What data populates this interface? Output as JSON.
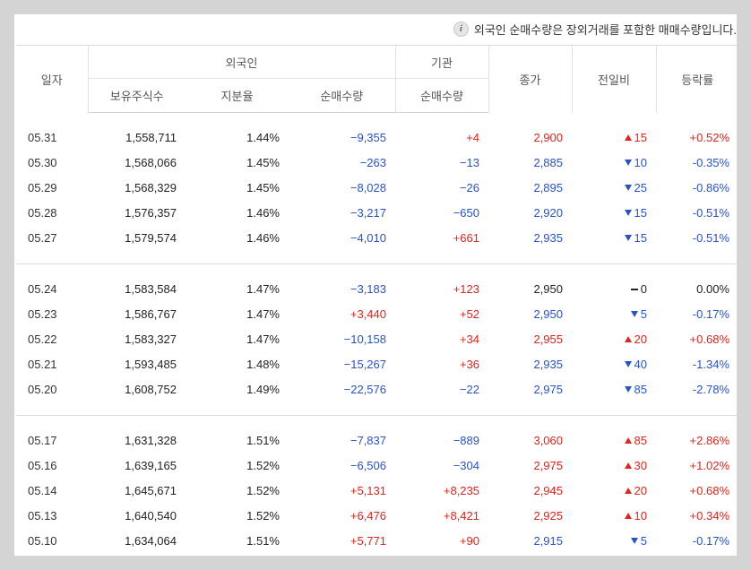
{
  "notice": "외국인 순매수량은 장외거래를 포함한 매매수량입니다.",
  "colors": {
    "up": "#e0241b",
    "down": "#2753c7",
    "flat": "#222222"
  },
  "headers": {
    "date": "일자",
    "foreign": "외국인",
    "institution": "기관",
    "holdings": "보유주식수",
    "share": "지분율",
    "foreign_net": "순매수량",
    "inst_net": "순매수량",
    "close": "종가",
    "change": "전일비",
    "rate": "등락률"
  },
  "groups": [
    [
      {
        "date": "05.31",
        "holdings": "1,558,711",
        "share": "1.44%",
        "foreign_net": "−9,355",
        "foreign_dir": "down",
        "inst_net": "+4",
        "inst_dir": "up",
        "close": "2,900",
        "close_dir": "up",
        "change": "15",
        "change_dir": "up",
        "rate": "+0.52%",
        "rate_dir": "up"
      },
      {
        "date": "05.30",
        "holdings": "1,568,066",
        "share": "1.45%",
        "foreign_net": "−263",
        "foreign_dir": "down",
        "inst_net": "−13",
        "inst_dir": "down",
        "close": "2,885",
        "close_dir": "down",
        "change": "10",
        "change_dir": "down",
        "rate": "-0.35%",
        "rate_dir": "down"
      },
      {
        "date": "05.29",
        "holdings": "1,568,329",
        "share": "1.45%",
        "foreign_net": "−8,028",
        "foreign_dir": "down",
        "inst_net": "−26",
        "inst_dir": "down",
        "close": "2,895",
        "close_dir": "down",
        "change": "25",
        "change_dir": "down",
        "rate": "-0.86%",
        "rate_dir": "down"
      },
      {
        "date": "05.28",
        "holdings": "1,576,357",
        "share": "1.46%",
        "foreign_net": "−3,217",
        "foreign_dir": "down",
        "inst_net": "−650",
        "inst_dir": "down",
        "close": "2,920",
        "close_dir": "down",
        "change": "15",
        "change_dir": "down",
        "rate": "-0.51%",
        "rate_dir": "down"
      },
      {
        "date": "05.27",
        "holdings": "1,579,574",
        "share": "1.46%",
        "foreign_net": "−4,010",
        "foreign_dir": "down",
        "inst_net": "+661",
        "inst_dir": "up",
        "close": "2,935",
        "close_dir": "down",
        "change": "15",
        "change_dir": "down",
        "rate": "-0.51%",
        "rate_dir": "down"
      }
    ],
    [
      {
        "date": "05.24",
        "holdings": "1,583,584",
        "share": "1.47%",
        "foreign_net": "−3,183",
        "foreign_dir": "down",
        "inst_net": "+123",
        "inst_dir": "up",
        "close": "2,950",
        "close_dir": "flat",
        "change": "0",
        "change_dir": "flat",
        "rate": "0.00%",
        "rate_dir": "flat"
      },
      {
        "date": "05.23",
        "holdings": "1,586,767",
        "share": "1.47%",
        "foreign_net": "+3,440",
        "foreign_dir": "up",
        "inst_net": "+52",
        "inst_dir": "up",
        "close": "2,950",
        "close_dir": "down",
        "change": "5",
        "change_dir": "down",
        "rate": "-0.17%",
        "rate_dir": "down"
      },
      {
        "date": "05.22",
        "holdings": "1,583,327",
        "share": "1.47%",
        "foreign_net": "−10,158",
        "foreign_dir": "down",
        "inst_net": "+34",
        "inst_dir": "up",
        "close": "2,955",
        "close_dir": "up",
        "change": "20",
        "change_dir": "up",
        "rate": "+0.68%",
        "rate_dir": "up"
      },
      {
        "date": "05.21",
        "holdings": "1,593,485",
        "share": "1.48%",
        "foreign_net": "−15,267",
        "foreign_dir": "down",
        "inst_net": "+36",
        "inst_dir": "up",
        "close": "2,935",
        "close_dir": "down",
        "change": "40",
        "change_dir": "down",
        "rate": "-1.34%",
        "rate_dir": "down"
      },
      {
        "date": "05.20",
        "holdings": "1,608,752",
        "share": "1.49%",
        "foreign_net": "−22,576",
        "foreign_dir": "down",
        "inst_net": "−22",
        "inst_dir": "down",
        "close": "2,975",
        "close_dir": "down",
        "change": "85",
        "change_dir": "down",
        "rate": "-2.78%",
        "rate_dir": "down"
      }
    ],
    [
      {
        "date": "05.17",
        "holdings": "1,631,328",
        "share": "1.51%",
        "foreign_net": "−7,837",
        "foreign_dir": "down",
        "inst_net": "−889",
        "inst_dir": "down",
        "close": "3,060",
        "close_dir": "up",
        "change": "85",
        "change_dir": "up",
        "rate": "+2.86%",
        "rate_dir": "up"
      },
      {
        "date": "05.16",
        "holdings": "1,639,165",
        "share": "1.52%",
        "foreign_net": "−6,506",
        "foreign_dir": "down",
        "inst_net": "−304",
        "inst_dir": "down",
        "close": "2,975",
        "close_dir": "up",
        "change": "30",
        "change_dir": "up",
        "rate": "+1.02%",
        "rate_dir": "up"
      },
      {
        "date": "05.14",
        "holdings": "1,645,671",
        "share": "1.52%",
        "foreign_net": "+5,131",
        "foreign_dir": "up",
        "inst_net": "+8,235",
        "inst_dir": "up",
        "close": "2,945",
        "close_dir": "up",
        "change": "20",
        "change_dir": "up",
        "rate": "+0.68%",
        "rate_dir": "up"
      },
      {
        "date": "05.13",
        "holdings": "1,640,540",
        "share": "1.52%",
        "foreign_net": "+6,476",
        "foreign_dir": "up",
        "inst_net": "+8,421",
        "inst_dir": "up",
        "close": "2,925",
        "close_dir": "up",
        "change": "10",
        "change_dir": "up",
        "rate": "+0.34%",
        "rate_dir": "up"
      },
      {
        "date": "05.10",
        "holdings": "1,634,064",
        "share": "1.51%",
        "foreign_net": "+5,771",
        "foreign_dir": "up",
        "inst_net": "+90",
        "inst_dir": "up",
        "close": "2,915",
        "close_dir": "down",
        "change": "5",
        "change_dir": "down",
        "rate": "-0.17%",
        "rate_dir": "down"
      }
    ]
  ]
}
